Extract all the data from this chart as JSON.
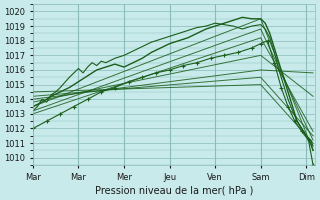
{
  "bg_color": "#c8eaea",
  "grid_color": "#8bbcbc",
  "line_color": "#1a5e1a",
  "title": "Pression niveau de la mer( hPa )",
  "ylabel_ticks": [
    1010,
    1011,
    1012,
    1013,
    1014,
    1015,
    1016,
    1017,
    1018,
    1019,
    1020
  ],
  "xlim": [
    0,
    6.2
  ],
  "ylim": [
    1009.5,
    1020.5
  ],
  "xtick_positions": [
    0,
    1,
    2,
    3,
    4,
    5,
    6
  ],
  "xtick_labels": [
    "Mar",
    "Mar",
    "Mer",
    "Jeu",
    "Ven",
    "Sam",
    "Dim"
  ],
  "series": [
    {
      "x": [
        0.0,
        5.0,
        6.15
      ],
      "y": [
        1013.5,
        1019.5,
        1010.5
      ]
    },
    {
      "x": [
        0.0,
        5.0,
        6.15
      ],
      "y": [
        1013.2,
        1018.8,
        1011.2
      ]
    },
    {
      "x": [
        0.0,
        5.0,
        6.15
      ],
      "y": [
        1013.0,
        1018.2,
        1011.8
      ]
    },
    {
      "x": [
        0.0,
        5.0,
        6.15
      ],
      "y": [
        1013.8,
        1017.0,
        1014.2
      ]
    },
    {
      "x": [
        0.0,
        5.0,
        6.15
      ],
      "y": [
        1014.0,
        1016.0,
        1015.8
      ]
    },
    {
      "x": [
        0.0,
        5.0,
        6.15
      ],
      "y": [
        1014.2,
        1015.5,
        1011.5
      ]
    },
    {
      "x": [
        0.0,
        5.0,
        6.15
      ],
      "y": [
        1014.5,
        1015.0,
        1011.0
      ]
    }
  ],
  "main_series_x": [
    0.0,
    0.2,
    0.4,
    0.6,
    0.8,
    1.0,
    1.2,
    1.4,
    1.6,
    1.8,
    2.0,
    2.2,
    2.4,
    2.6,
    2.8,
    3.0,
    3.2,
    3.4,
    3.6,
    3.8,
    4.0,
    4.2,
    4.4,
    4.6,
    4.8,
    5.0,
    5.1,
    5.2,
    5.3,
    5.4,
    5.5,
    5.6,
    5.7,
    5.8,
    5.9,
    6.0,
    6.1,
    6.15
  ],
  "main_series_y": [
    1013.5,
    1013.8,
    1014.2,
    1014.5,
    1014.8,
    1015.2,
    1015.6,
    1016.0,
    1016.2,
    1016.4,
    1016.2,
    1016.5,
    1016.8,
    1017.2,
    1017.5,
    1017.8,
    1018.0,
    1018.2,
    1018.5,
    1018.8,
    1019.0,
    1019.2,
    1019.4,
    1019.6,
    1019.5,
    1019.5,
    1019.2,
    1018.5,
    1017.5,
    1016.5,
    1015.5,
    1014.5,
    1013.5,
    1012.5,
    1012.0,
    1011.5,
    1011.0,
    1010.5
  ],
  "wiggly_series_x": [
    0.0,
    0.1,
    0.2,
    0.3,
    0.4,
    0.5,
    0.6,
    0.8,
    1.0,
    1.1,
    1.2,
    1.3,
    1.4,
    1.5,
    1.6,
    1.8,
    2.0,
    2.2,
    2.4,
    2.6,
    2.8,
    3.0,
    3.2,
    3.4,
    3.6,
    3.8,
    4.0,
    4.2,
    4.4,
    4.6,
    4.8,
    5.0,
    5.1,
    5.2,
    5.3,
    5.4,
    5.5,
    5.6,
    5.7,
    5.8,
    5.9,
    6.0,
    6.1,
    6.15
  ],
  "wiggly_series_y": [
    1013.2,
    1013.5,
    1014.0,
    1013.8,
    1014.3,
    1014.5,
    1014.8,
    1015.5,
    1016.1,
    1015.8,
    1016.2,
    1016.5,
    1016.3,
    1016.6,
    1016.5,
    1016.8,
    1017.0,
    1017.3,
    1017.6,
    1017.9,
    1018.1,
    1018.3,
    1018.5,
    1018.7,
    1018.9,
    1019.0,
    1019.2,
    1019.1,
    1019.0,
    1018.8,
    1019.0,
    1019.1,
    1018.8,
    1018.2,
    1017.2,
    1016.0,
    1015.0,
    1014.0,
    1013.2,
    1012.5,
    1012.0,
    1011.5,
    1011.2,
    1010.8
  ],
  "marker_series_x": [
    0.0,
    0.3,
    0.6,
    0.9,
    1.2,
    1.5,
    1.8,
    2.1,
    2.4,
    2.7,
    3.0,
    3.3,
    3.6,
    3.9,
    4.2,
    4.5,
    4.8,
    5.0,
    5.15,
    5.3,
    5.45,
    5.6,
    5.75,
    5.9,
    6.05,
    6.15
  ],
  "marker_series_y": [
    1012.0,
    1012.5,
    1013.0,
    1013.5,
    1014.0,
    1014.5,
    1014.8,
    1015.2,
    1015.5,
    1015.8,
    1016.0,
    1016.3,
    1016.5,
    1016.8,
    1017.0,
    1017.2,
    1017.5,
    1017.8,
    1018.0,
    1016.5,
    1014.8,
    1013.5,
    1012.5,
    1011.8,
    1011.2,
    1009.5
  ]
}
